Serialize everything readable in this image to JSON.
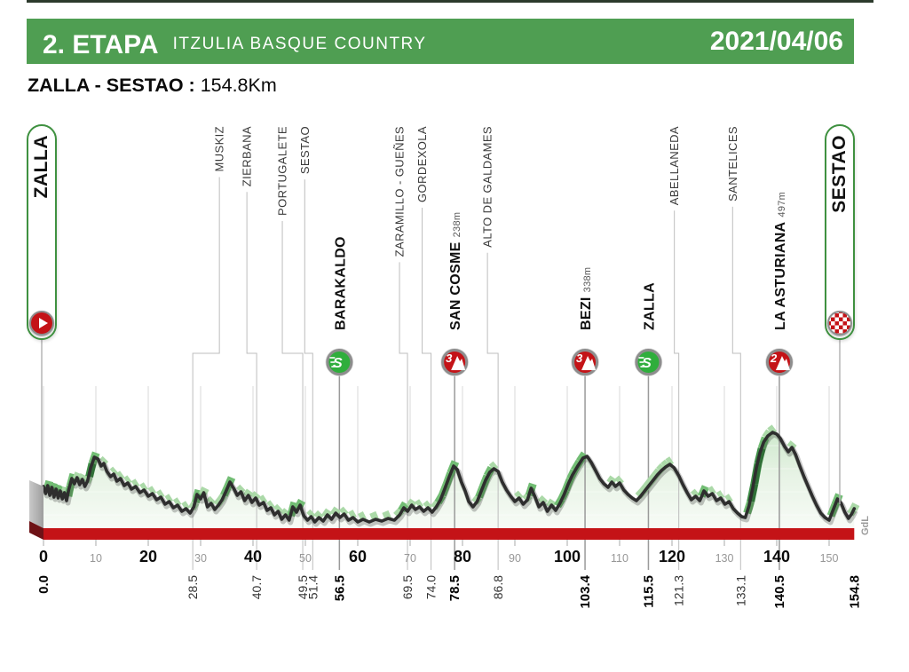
{
  "header": {
    "stage_label": "2. ETAPA",
    "race_name": "ITZULIA BASQUE COUNTRY",
    "date": "2021/04/06"
  },
  "subtitle": {
    "route": "ZALLA - SESTAO :",
    "distance": "154.8Km"
  },
  "start": {
    "name": "ZALLA",
    "icon": "play-icon"
  },
  "finish": {
    "name": "SESTAO",
    "icon": "checkered-flag-icon"
  },
  "watermark": "GdL",
  "colors": {
    "header_green": "#4f9e52",
    "top_strip": "#2c3a2c",
    "pill_border": "#3f9140",
    "badge_green": "#2fae3c",
    "badge_red": "#c41317",
    "road_red": "#c41317",
    "road_dark_red": "#6e1216",
    "wall_gray_light": "#c9c9c9",
    "wall_gray_dark": "#9e9e9e",
    "profile_line": "#2e2e2e",
    "fill_top": "#cfe9cd",
    "fill_mid": "#e7f3e5",
    "fill_bottom": "#f7fbf6",
    "ribbon_light": "#abd9a8",
    "ribbon_medium": "#72bd74",
    "ribbon_dark": "#3e8f47",
    "gridline": "#d9d9d9",
    "marker_line": "#9a9a9a",
    "thin_line": "#bdbdbd"
  },
  "chart_data": {
    "type": "area",
    "title": "Stage 2 elevation profile, Zalla - Sestao",
    "x_unit": "km",
    "x_range": [
      0,
      154.8
    ],
    "x_ticks": [
      0,
      10,
      20,
      30,
      40,
      50,
      60,
      70,
      80,
      90,
      100,
      110,
      120,
      130,
      140,
      150
    ],
    "total_km": 154.8,
    "grid": true,
    "waypoints": [
      {
        "name": "ZALLA",
        "km": 0.0,
        "kind": "start",
        "elevation": null
      },
      {
        "name": "MUSKIZ",
        "km": 28.5,
        "kind": "pass",
        "elevation": null
      },
      {
        "name": "ZIERBANA",
        "km": 40.7,
        "kind": "pass",
        "elevation": null
      },
      {
        "name": "PORTUGALETE",
        "km": 49.5,
        "kind": "pass",
        "elevation": null
      },
      {
        "name": "SESTAO",
        "km": 51.4,
        "kind": "pass",
        "elevation": null
      },
      {
        "name": "BARAKALDO",
        "km": 56.5,
        "kind": "sprint",
        "elevation": null
      },
      {
        "name": "ZARAMILLO - GUEÑES",
        "km": 69.5,
        "kind": "pass",
        "elevation": null
      },
      {
        "name": "GORDEXOLA",
        "km": 74.0,
        "kind": "pass",
        "elevation": null
      },
      {
        "name": "SAN COSME",
        "km": 78.5,
        "kind": "cat3",
        "elevation": "238m"
      },
      {
        "name": "ALTO DE GALDAMES",
        "km": 86.8,
        "kind": "pass",
        "elevation": null
      },
      {
        "name": "BEZI",
        "km": 103.4,
        "kind": "cat3",
        "elevation": "338m"
      },
      {
        "name": "ZALLA",
        "km": 115.5,
        "kind": "sprint",
        "elevation": null
      },
      {
        "name": "ABELLANEDA",
        "km": 121.3,
        "kind": "pass",
        "elevation": null
      },
      {
        "name": "SANTELICES",
        "km": 133.1,
        "kind": "pass",
        "elevation": null
      },
      {
        "name": "LA ASTURIANA",
        "km": 140.5,
        "kind": "cat2",
        "elevation": "497m"
      },
      {
        "name": "SESTAO",
        "km": 154.8,
        "kind": "finish",
        "elevation": null
      }
    ],
    "profile_rel_height": [
      [
        0,
        47
      ],
      [
        0.4,
        39
      ],
      [
        0.8,
        48
      ],
      [
        1.2,
        37
      ],
      [
        1.6,
        46
      ],
      [
        2,
        35
      ],
      [
        2.4,
        44
      ],
      [
        2.8,
        34
      ],
      [
        3.2,
        42
      ],
      [
        3.6,
        33
      ],
      [
        4,
        40
      ],
      [
        4.4,
        31
      ],
      [
        4.8,
        43
      ],
      [
        5.4,
        56
      ],
      [
        5.9,
        50
      ],
      [
        6.4,
        57
      ],
      [
        6.9,
        49
      ],
      [
        7.4,
        55
      ],
      [
        7.9,
        47
      ],
      [
        8.4,
        53
      ],
      [
        9,
        68
      ],
      [
        9.7,
        80
      ],
      [
        10.4,
        78
      ],
      [
        11,
        70
      ],
      [
        11.5,
        73
      ],
      [
        12.1,
        64
      ],
      [
        12.8,
        58
      ],
      [
        13.4,
        61
      ],
      [
        14,
        53
      ],
      [
        14.7,
        56
      ],
      [
        15.4,
        48
      ],
      [
        16.1,
        51
      ],
      [
        16.8,
        44
      ],
      [
        17.6,
        47
      ],
      [
        18.4,
        40
      ],
      [
        19.2,
        43
      ],
      [
        20,
        36
      ],
      [
        20.8,
        39
      ],
      [
        21.6,
        32
      ],
      [
        22.4,
        35
      ],
      [
        23.2,
        27
      ],
      [
        24,
        30
      ],
      [
        24.8,
        23
      ],
      [
        25.6,
        26
      ],
      [
        26.4,
        19
      ],
      [
        27.2,
        22
      ],
      [
        28,
        17
      ],
      [
        28.7,
        24
      ],
      [
        29.3,
        38
      ],
      [
        30,
        33
      ],
      [
        30.6,
        40
      ],
      [
        31.3,
        24
      ],
      [
        32,
        28
      ],
      [
        32.7,
        21
      ],
      [
        33.4,
        26
      ],
      [
        34.1,
        32
      ],
      [
        34.8,
        41
      ],
      [
        35.6,
        52
      ],
      [
        36.3,
        45
      ],
      [
        37,
        37
      ],
      [
        37.7,
        41
      ],
      [
        38.4,
        31
      ],
      [
        39.1,
        37
      ],
      [
        39.8,
        29
      ],
      [
        40.5,
        34
      ],
      [
        41.2,
        26
      ],
      [
        42,
        29
      ],
      [
        42.7,
        20
      ],
      [
        43.4,
        23
      ],
      [
        44.1,
        15
      ],
      [
        44.8,
        19
      ],
      [
        45.5,
        10
      ],
      [
        46.2,
        15
      ],
      [
        46.9,
        9
      ],
      [
        47.6,
        24
      ],
      [
        48.3,
        18
      ],
      [
        49,
        26
      ],
      [
        49.7,
        14
      ],
      [
        50.4,
        9
      ],
      [
        51.1,
        13
      ],
      [
        51.8,
        7
      ],
      [
        52.6,
        12
      ],
      [
        53.4,
        8
      ],
      [
        54.2,
        15
      ],
      [
        55,
        10
      ],
      [
        55.8,
        17
      ],
      [
        56.6,
        12
      ],
      [
        57.4,
        16
      ],
      [
        58.2,
        9
      ],
      [
        59.1,
        12
      ],
      [
        60,
        7
      ],
      [
        61,
        10
      ],
      [
        62.2,
        7
      ],
      [
        63.4,
        10
      ],
      [
        64.6,
        8
      ],
      [
        65.8,
        11
      ],
      [
        67,
        9
      ],
      [
        68,
        15
      ],
      [
        68.8,
        23
      ],
      [
        69.5,
        19
      ],
      [
        70.3,
        26
      ],
      [
        71,
        21
      ],
      [
        71.8,
        24
      ],
      [
        72.6,
        19
      ],
      [
        73.4,
        23
      ],
      [
        74.2,
        18
      ],
      [
        75,
        24
      ],
      [
        75.8,
        32
      ],
      [
        76.6,
        44
      ],
      [
        77.4,
        57
      ],
      [
        78.3,
        70
      ],
      [
        79,
        66
      ],
      [
        79.8,
        52
      ],
      [
        80.5,
        42
      ],
      [
        81.2,
        30
      ],
      [
        82,
        24
      ],
      [
        82.8,
        30
      ],
      [
        83.6,
        42
      ],
      [
        84.4,
        54
      ],
      [
        85.2,
        63
      ],
      [
        86,
        67
      ],
      [
        86.8,
        64
      ],
      [
        87.6,
        52
      ],
      [
        88.4,
        43
      ],
      [
        89.2,
        36
      ],
      [
        90,
        30
      ],
      [
        90.8,
        34
      ],
      [
        91.6,
        27
      ],
      [
        92.4,
        32
      ],
      [
        93.1,
        45
      ],
      [
        93.8,
        36
      ],
      [
        94.6,
        24
      ],
      [
        95.4,
        29
      ],
      [
        96.2,
        19
      ],
      [
        97,
        26
      ],
      [
        97.8,
        20
      ],
      [
        98.6,
        28
      ],
      [
        99.4,
        38
      ],
      [
        100.2,
        50
      ],
      [
        101,
        60
      ],
      [
        102,
        70
      ],
      [
        103,
        79
      ],
      [
        103.8,
        81
      ],
      [
        104.6,
        74
      ],
      [
        105.4,
        65
      ],
      [
        106.2,
        56
      ],
      [
        107,
        50
      ],
      [
        107.8,
        46
      ],
      [
        108.5,
        52
      ],
      [
        109.2,
        47
      ],
      [
        110,
        51
      ],
      [
        110.8,
        43
      ],
      [
        111.6,
        38
      ],
      [
        112.4,
        34
      ],
      [
        113.2,
        31
      ],
      [
        114,
        36
      ],
      [
        114.8,
        42
      ],
      [
        115.6,
        48
      ],
      [
        116.4,
        54
      ],
      [
        117.2,
        60
      ],
      [
        118,
        65
      ],
      [
        118.8,
        69
      ],
      [
        119.6,
        72
      ],
      [
        120.4,
        68
      ],
      [
        121.3,
        59
      ],
      [
        122.1,
        49
      ],
      [
        122.9,
        40
      ],
      [
        123.7,
        32
      ],
      [
        124.5,
        36
      ],
      [
        125.3,
        31
      ],
      [
        126.1,
        42
      ],
      [
        126.9,
        36
      ],
      [
        127.7,
        39
      ],
      [
        128.5,
        31
      ],
      [
        129.3,
        34
      ],
      [
        130.1,
        27
      ],
      [
        130.9,
        30
      ],
      [
        131.7,
        22
      ],
      [
        132.5,
        17
      ],
      [
        133.3,
        13
      ],
      [
        134,
        12
      ],
      [
        134.7,
        25
      ],
      [
        135.4,
        45
      ],
      [
        136.1,
        68
      ],
      [
        136.8,
        85
      ],
      [
        137.5,
        97
      ],
      [
        138.3,
        104
      ],
      [
        139.2,
        108
      ],
      [
        140,
        106
      ],
      [
        140.7,
        101
      ],
      [
        141.5,
        92
      ],
      [
        142.2,
        86
      ],
      [
        142.9,
        91
      ],
      [
        143.6,
        83
      ],
      [
        144.4,
        70
      ],
      [
        145.2,
        58
      ],
      [
        146,
        47
      ],
      [
        146.8,
        36
      ],
      [
        147.6,
        26
      ],
      [
        148.4,
        17
      ],
      [
        149.2,
        12
      ],
      [
        150,
        9
      ],
      [
        150.8,
        21
      ],
      [
        151.6,
        33
      ],
      [
        152.3,
        28
      ],
      [
        153,
        18
      ],
      [
        153.7,
        11
      ],
      [
        154.3,
        16
      ],
      [
        154.8,
        22
      ]
    ]
  }
}
